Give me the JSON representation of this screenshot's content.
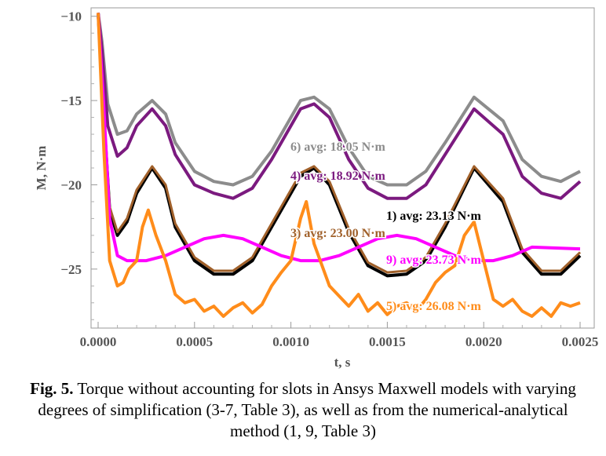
{
  "caption": {
    "fig_label": "Fig. 5.",
    "text": " Torque without accounting for slots in Ansys Maxwell models with varying degrees of simplification (3-7, Table 3), as well as from the numerical-analytical method (1, 9, Table 3)"
  },
  "chart_data": {
    "type": "line",
    "xlabel": "t, s",
    "ylabel": "M, N·m",
    "xlim": [
      0,
      0.0025
    ],
    "ylim": [
      -28.5,
      -9.5
    ],
    "x_ticks": [
      0.0,
      0.0005,
      0.001,
      0.0015,
      0.002,
      0.0025
    ],
    "x_tick_labels": [
      "0.0000",
      "0.0005",
      "0.0010",
      "0.0015",
      "0.0020",
      "0.0025"
    ],
    "y_ticks": [
      -10,
      -15,
      -20,
      -25
    ],
    "y_tick_labels": [
      "−10",
      "−15",
      "−20",
      "−25"
    ],
    "grid": false,
    "series": [
      {
        "name": "6) avg: 18.05 N·m",
        "color": "#8c8c8c",
        "points": [
          [
            0.0,
            -9.8
          ],
          [
            2e-05,
            -11.5
          ],
          [
            5e-05,
            -15.2
          ],
          [
            0.0001,
            -17.0
          ],
          [
            0.00015,
            -16.8
          ],
          [
            0.0002,
            -15.8
          ],
          [
            0.00028,
            -15.0
          ],
          [
            0.00035,
            -15.8
          ],
          [
            0.0004,
            -17.5
          ],
          [
            0.0005,
            -19.2
          ],
          [
            0.0006,
            -19.8
          ],
          [
            0.0007,
            -20.0
          ],
          [
            0.0008,
            -19.5
          ],
          [
            0.0009,
            -18.0
          ],
          [
            0.00105,
            -15.0
          ],
          [
            0.00112,
            -14.8
          ],
          [
            0.0012,
            -15.5
          ],
          [
            0.0013,
            -17.8
          ],
          [
            0.0014,
            -19.5
          ],
          [
            0.0015,
            -20.0
          ],
          [
            0.0016,
            -20.0
          ],
          [
            0.0017,
            -19.2
          ],
          [
            0.0018,
            -17.5
          ],
          [
            0.00195,
            -14.8
          ],
          [
            0.0021,
            -16.2
          ],
          [
            0.0022,
            -18.5
          ],
          [
            0.0023,
            -19.5
          ],
          [
            0.0024,
            -19.8
          ],
          [
            0.0025,
            -19.2
          ]
        ]
      },
      {
        "name": "4) avg: 18.92 N·m",
        "color": "#7b1a7f",
        "points": [
          [
            0.0,
            -9.8
          ],
          [
            2e-05,
            -12.0
          ],
          [
            5e-05,
            -16.5
          ],
          [
            0.0001,
            -18.3
          ],
          [
            0.00015,
            -17.8
          ],
          [
            0.0002,
            -16.5
          ],
          [
            0.00028,
            -15.5
          ],
          [
            0.00035,
            -16.5
          ],
          [
            0.0004,
            -18.2
          ],
          [
            0.0005,
            -20.0
          ],
          [
            0.0006,
            -20.5
          ],
          [
            0.0007,
            -20.8
          ],
          [
            0.0008,
            -20.2
          ],
          [
            0.0009,
            -18.5
          ],
          [
            0.00105,
            -15.5
          ],
          [
            0.00112,
            -15.2
          ],
          [
            0.0012,
            -16.0
          ],
          [
            0.0013,
            -18.5
          ],
          [
            0.0014,
            -20.2
          ],
          [
            0.0015,
            -20.8
          ],
          [
            0.0016,
            -20.8
          ],
          [
            0.0017,
            -20.0
          ],
          [
            0.0018,
            -18.2
          ],
          [
            0.00195,
            -15.5
          ],
          [
            0.0021,
            -17.0
          ],
          [
            0.0022,
            -19.5
          ],
          [
            0.0023,
            -20.5
          ],
          [
            0.0024,
            -20.8
          ],
          [
            0.0025,
            -19.8
          ]
        ]
      },
      {
        "name": "1) avg: 23.13 N·m",
        "color": "#000000",
        "points": [
          [
            0.0,
            -9.8
          ],
          [
            3e-05,
            -16.0
          ],
          [
            6e-05,
            -21.5
          ],
          [
            0.0001,
            -23.0
          ],
          [
            0.00015,
            -22.2
          ],
          [
            0.0002,
            -20.5
          ],
          [
            0.00028,
            -19.0
          ],
          [
            0.00035,
            -20.2
          ],
          [
            0.0004,
            -22.5
          ],
          [
            0.0005,
            -24.5
          ],
          [
            0.0006,
            -25.3
          ],
          [
            0.0007,
            -25.3
          ],
          [
            0.0008,
            -24.5
          ],
          [
            0.0009,
            -22.5
          ],
          [
            0.00105,
            -19.5
          ],
          [
            0.00112,
            -19.0
          ],
          [
            0.0012,
            -20.0
          ],
          [
            0.0013,
            -22.8
          ],
          [
            0.0014,
            -24.8
          ],
          [
            0.0015,
            -25.4
          ],
          [
            0.0016,
            -25.3
          ],
          [
            0.0017,
            -24.5
          ],
          [
            0.0018,
            -22.5
          ],
          [
            0.00195,
            -19.0
          ],
          [
            0.0021,
            -21.0
          ],
          [
            0.0022,
            -24.0
          ],
          [
            0.0023,
            -25.3
          ],
          [
            0.0024,
            -25.3
          ],
          [
            0.0025,
            -24.2
          ]
        ]
      },
      {
        "name": "3) avg: 23.00 N·m",
        "color": "#a0602a",
        "points": [
          [
            0.0,
            -9.8
          ],
          [
            3e-05,
            -15.8
          ],
          [
            6e-05,
            -21.3
          ],
          [
            0.0001,
            -22.8
          ],
          [
            0.00015,
            -22.0
          ],
          [
            0.0002,
            -20.3
          ],
          [
            0.00028,
            -18.9
          ],
          [
            0.00035,
            -20.0
          ],
          [
            0.0004,
            -22.3
          ],
          [
            0.0005,
            -24.3
          ],
          [
            0.0006,
            -25.1
          ],
          [
            0.0007,
            -25.1
          ],
          [
            0.0008,
            -24.3
          ],
          [
            0.0009,
            -22.3
          ],
          [
            0.00105,
            -19.3
          ],
          [
            0.00112,
            -18.9
          ],
          [
            0.0012,
            -19.8
          ],
          [
            0.0013,
            -22.6
          ],
          [
            0.0014,
            -24.6
          ],
          [
            0.0015,
            -25.2
          ],
          [
            0.0016,
            -25.1
          ],
          [
            0.0017,
            -24.3
          ],
          [
            0.0018,
            -22.3
          ],
          [
            0.00195,
            -18.9
          ],
          [
            0.0021,
            -20.8
          ],
          [
            0.0022,
            -23.8
          ],
          [
            0.0023,
            -25.1
          ],
          [
            0.0024,
            -25.1
          ],
          [
            0.0025,
            -24.0
          ]
        ]
      },
      {
        "name": "9) avg: 23.73 N·m",
        "color": "#ff00ff",
        "points": [
          [
            0.0,
            -9.8
          ],
          [
            3e-05,
            -15.5
          ],
          [
            6e-05,
            -22.0
          ],
          [
            0.0001,
            -24.2
          ],
          [
            0.00015,
            -24.5
          ],
          [
            0.00025,
            -24.5
          ],
          [
            0.00035,
            -24.2
          ],
          [
            0.00045,
            -23.7
          ],
          [
            0.00055,
            -23.2
          ],
          [
            0.00065,
            -23.0
          ],
          [
            0.00075,
            -23.2
          ],
          [
            0.00085,
            -23.7
          ],
          [
            0.00095,
            -24.2
          ],
          [
            0.00105,
            -24.5
          ],
          [
            0.00115,
            -24.5
          ],
          [
            0.00125,
            -24.2
          ],
          [
            0.00135,
            -23.7
          ],
          [
            0.00145,
            -23.2
          ],
          [
            0.00155,
            -23.0
          ],
          [
            0.00165,
            -23.2
          ],
          [
            0.00175,
            -23.7
          ],
          [
            0.00185,
            -24.2
          ],
          [
            0.00195,
            -24.5
          ],
          [
            0.00205,
            -24.5
          ],
          [
            0.00215,
            -24.2
          ],
          [
            0.00225,
            -23.7
          ],
          [
            0.0025,
            -23.8
          ]
        ]
      },
      {
        "name": "5) avg: 26.08 N·m",
        "color": "#ff8c1a",
        "points": [
          [
            0.0,
            -9.8
          ],
          [
            3e-05,
            -18.0
          ],
          [
            6e-05,
            -24.5
          ],
          [
            0.0001,
            -26.0
          ],
          [
            0.00013,
            -25.8
          ],
          [
            0.00016,
            -25.0
          ],
          [
            0.0002,
            -24.5
          ],
          [
            0.00023,
            -22.5
          ],
          [
            0.00026,
            -21.5
          ],
          [
            0.0003,
            -23.0
          ],
          [
            0.00035,
            -24.5
          ],
          [
            0.0004,
            -26.5
          ],
          [
            0.00045,
            -27.0
          ],
          [
            0.0005,
            -26.8
          ],
          [
            0.00055,
            -27.5
          ],
          [
            0.0006,
            -27.2
          ],
          [
            0.00065,
            -27.8
          ],
          [
            0.0007,
            -27.3
          ],
          [
            0.00075,
            -27.0
          ],
          [
            0.0008,
            -27.6
          ],
          [
            0.00085,
            -27.1
          ],
          [
            0.0009,
            -26.0
          ],
          [
            0.00095,
            -25.2
          ],
          [
            0.001,
            -24.5
          ],
          [
            0.00105,
            -22.0
          ],
          [
            0.00108,
            -21.0
          ],
          [
            0.00112,
            -23.5
          ],
          [
            0.0012,
            -26.0
          ],
          [
            0.0013,
            -27.2
          ],
          [
            0.00135,
            -26.5
          ],
          [
            0.0014,
            -27.5
          ],
          [
            0.00145,
            -27.0
          ],
          [
            0.0015,
            -27.7
          ],
          [
            0.00155,
            -27.2
          ],
          [
            0.0016,
            -27.0
          ],
          [
            0.00165,
            -27.5
          ],
          [
            0.0017,
            -26.8
          ],
          [
            0.00175,
            -25.8
          ],
          [
            0.0018,
            -25.2
          ],
          [
            0.00185,
            -24.8
          ],
          [
            0.0019,
            -23.0
          ],
          [
            0.00195,
            -22.2
          ],
          [
            0.002,
            -24.5
          ],
          [
            0.00205,
            -26.8
          ],
          [
            0.0021,
            -27.2
          ],
          [
            0.00215,
            -26.8
          ],
          [
            0.0022,
            -27.5
          ],
          [
            0.00225,
            -27.8
          ],
          [
            0.0023,
            -27.3
          ],
          [
            0.00235,
            -27.8
          ],
          [
            0.0024,
            -27.0
          ],
          [
            0.00245,
            -27.2
          ],
          [
            0.0025,
            -27.0
          ]
        ]
      }
    ]
  }
}
